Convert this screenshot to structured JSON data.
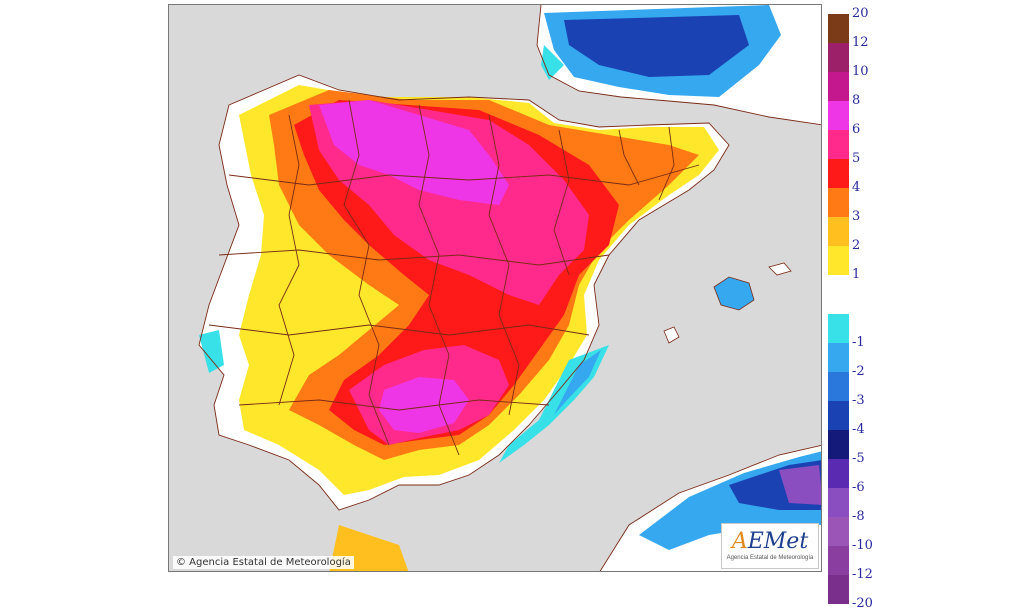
{
  "map": {
    "copyright": "© Agencia Estatal de Meteorología",
    "logo_text_a": "A",
    "logo_text_b": "EMet",
    "logo_subtitle": "Agencia Estatal de Meteorología",
    "colors": {
      "sea": "#d9d9d9",
      "border": "#7a2a16",
      "logo_blue": "#1f3f8f",
      "logo_orange": "#e08a1e"
    }
  },
  "legend": {
    "positive": [
      {
        "label": "20",
        "color": "#7b3a18"
      },
      {
        "label": "12",
        "color": "#9c1f6a"
      },
      {
        "label": "10",
        "color": "#c4188f"
      },
      {
        "label": "8",
        "color": "#ee36e6"
      },
      {
        "label": "6",
        "color": "#ff2a8c"
      },
      {
        "label": "5",
        "color": "#ff1a1a"
      },
      {
        "label": "4",
        "color": "#ff7a14"
      },
      {
        "label": "3",
        "color": "#ffbf1f"
      },
      {
        "label": "2",
        "color": "#ffe82b"
      },
      {
        "label": "1",
        "color": "#ffffff"
      }
    ],
    "negative": [
      {
        "label": "-1",
        "color": "#38e0e8"
      },
      {
        "label": "-2",
        "color": "#35a8f0"
      },
      {
        "label": "-3",
        "color": "#2a78dc"
      },
      {
        "label": "-4",
        "color": "#1a42b2"
      },
      {
        "label": "-5",
        "color": "#141a7a"
      },
      {
        "label": "-6",
        "color": "#5a2bb0"
      },
      {
        "label": "-8",
        "color": "#8a4ec0"
      },
      {
        "label": "-10",
        "color": "#9a55b6"
      },
      {
        "label": "-12",
        "color": "#8a3fa0"
      },
      {
        "label": "-20",
        "color": "#7a2f8c"
      }
    ]
  }
}
